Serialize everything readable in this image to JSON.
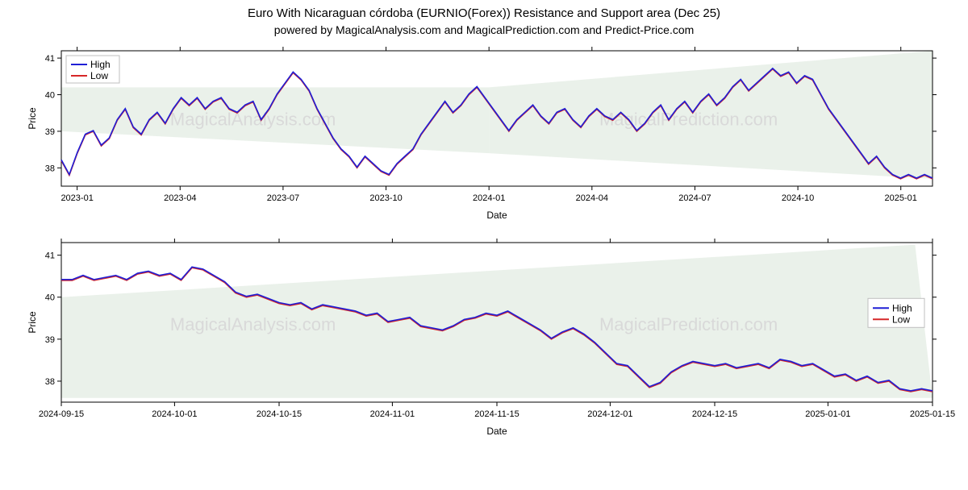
{
  "title": "Euro With Nicaraguan córdoba (EURNIO(Forex)) Resistance and Support area (Dec 25)",
  "subtitle": "powered by MagicalAnalysis.com and MagicalPrediction.com and Predict-Price.com",
  "watermark_left": "MagicalAnalysis.com",
  "watermark_right": "MagicalPrediction.com",
  "legend": {
    "high": "High",
    "low": "Low"
  },
  "colors": {
    "high_line": "#1f1fd6",
    "low_line": "#d62728",
    "shade": "#e6efe6",
    "axis": "#000000",
    "watermark": "#d9d9d9",
    "background": "#ffffff"
  },
  "top_chart": {
    "type": "line",
    "xlabel": "Date",
    "ylabel": "Price",
    "ylim": [
      37.5,
      41.2
    ],
    "yticks": [
      38,
      39,
      40,
      41
    ],
    "x_count": 110,
    "xticks": [
      {
        "i": 2,
        "label": "2023-01"
      },
      {
        "i": 15,
        "label": "2023-04"
      },
      {
        "i": 28,
        "label": "2023-07"
      },
      {
        "i": 41,
        "label": "2023-10"
      },
      {
        "i": 54,
        "label": "2024-01"
      },
      {
        "i": 67,
        "label": "2024-04"
      },
      {
        "i": 80,
        "label": "2024-07"
      },
      {
        "i": 93,
        "label": "2024-10"
      },
      {
        "i": 106,
        "label": "2025-01"
      }
    ],
    "shade1": [
      [
        0,
        39.0
      ],
      [
        54,
        38.4
      ],
      [
        54,
        40.2
      ],
      [
        0,
        40.2
      ]
    ],
    "shade2": [
      [
        54,
        38.4
      ],
      [
        110,
        37.7
      ],
      [
        110,
        41.2
      ],
      [
        54,
        40.2
      ]
    ],
    "low_series": [
      38.2,
      37.8,
      38.4,
      38.9,
      39.0,
      38.6,
      38.8,
      39.3,
      39.6,
      39.1,
      38.9,
      39.3,
      39.5,
      39.2,
      39.6,
      39.9,
      39.7,
      39.9,
      39.6,
      39.8,
      39.9,
      39.6,
      39.5,
      39.7,
      39.8,
      39.3,
      39.6,
      40.0,
      40.3,
      40.6,
      40.4,
      40.1,
      39.6,
      39.2,
      38.8,
      38.5,
      38.3,
      38.0,
      38.3,
      38.1,
      37.9,
      37.8,
      38.1,
      38.3,
      38.5,
      38.9,
      39.2,
      39.5,
      39.8,
      39.5,
      39.7,
      40.0,
      40.2,
      39.9,
      39.6,
      39.3,
      39.0,
      39.3,
      39.5,
      39.7,
      39.4,
      39.2,
      39.5,
      39.6,
      39.3,
      39.1,
      39.4,
      39.6,
      39.4,
      39.3,
      39.5,
      39.3,
      39.0,
      39.2,
      39.5,
      39.7,
      39.3,
      39.6,
      39.8,
      39.5,
      39.8,
      40.0,
      39.7,
      39.9,
      40.2,
      40.4,
      40.1,
      40.3,
      40.5,
      40.7,
      40.5,
      40.6,
      40.3,
      40.5,
      40.4,
      40.0,
      39.6,
      39.3,
      39.0,
      38.7,
      38.4,
      38.1,
      38.3,
      38.0,
      37.8,
      37.7,
      37.8,
      37.7,
      37.8,
      37.7
    ],
    "legend_pos": "top-left"
  },
  "bottom_chart": {
    "type": "line",
    "xlabel": "Date",
    "ylabel": "Price",
    "ylim": [
      37.5,
      41.3
    ],
    "yticks": [
      38,
      39,
      40,
      41
    ],
    "x_count": 100,
    "xticks": [
      {
        "i": 0,
        "label": "2024-09-15"
      },
      {
        "i": 13,
        "label": "2024-10-01"
      },
      {
        "i": 25,
        "label": "2024-10-15"
      },
      {
        "i": 38,
        "label": "2024-11-01"
      },
      {
        "i": 50,
        "label": "2024-11-15"
      },
      {
        "i": 63,
        "label": "2024-12-01"
      },
      {
        "i": 75,
        "label": "2024-12-15"
      },
      {
        "i": 88,
        "label": "2025-01-01"
      },
      {
        "i": 100,
        "label": "2025-01-15"
      }
    ],
    "shade": [
      [
        0,
        37.6
      ],
      [
        100,
        37.6
      ],
      [
        98,
        41.25
      ],
      [
        0,
        40.0
      ]
    ],
    "low_series": [
      40.4,
      40.4,
      40.5,
      40.4,
      40.45,
      40.5,
      40.4,
      40.55,
      40.6,
      40.5,
      40.55,
      40.4,
      40.7,
      40.65,
      40.5,
      40.35,
      40.1,
      40.0,
      40.05,
      39.95,
      39.85,
      39.8,
      39.85,
      39.7,
      39.8,
      39.75,
      39.7,
      39.65,
      39.55,
      39.6,
      39.4,
      39.45,
      39.5,
      39.3,
      39.25,
      39.2,
      39.3,
      39.45,
      39.5,
      39.6,
      39.55,
      39.65,
      39.5,
      39.35,
      39.2,
      39.0,
      39.15,
      39.25,
      39.1,
      38.9,
      38.65,
      38.4,
      38.35,
      38.1,
      37.85,
      37.95,
      38.2,
      38.35,
      38.45,
      38.4,
      38.35,
      38.4,
      38.3,
      38.35,
      38.4,
      38.3,
      38.5,
      38.45,
      38.35,
      38.4,
      38.25,
      38.1,
      38.15,
      38.0,
      38.1,
      37.95,
      38.0,
      37.8,
      37.75,
      37.8,
      37.75
    ],
    "legend_pos": "right"
  }
}
